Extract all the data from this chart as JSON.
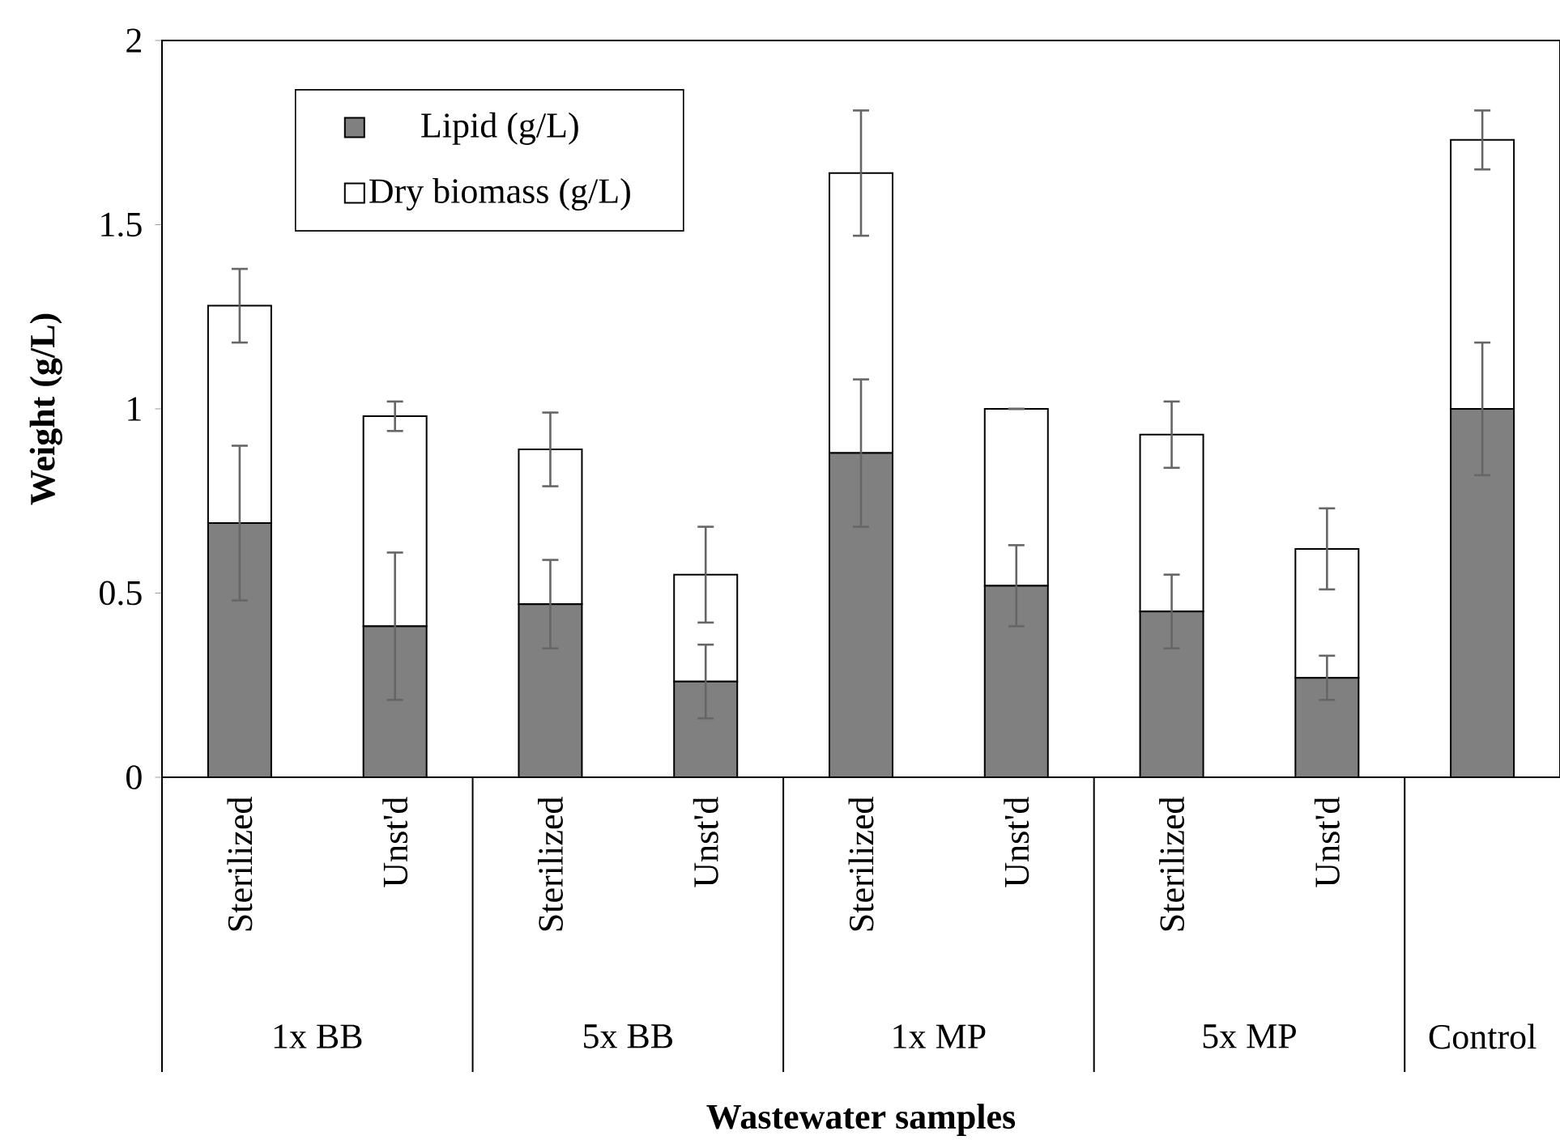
{
  "chart_data": {
    "type": "bar",
    "stacked": true,
    "xlabel": "Wastewater samples",
    "ylabel": "Weight (g/L)",
    "categories": [
      "Sterilized",
      "Unst'd",
      "Sterilized",
      "Unst'd",
      "Sterilized",
      "Unst'd",
      "Sterilized",
      "Unst'd",
      null
    ],
    "series": [
      {
        "name": "Lipid (g/L)",
        "color": "#808080",
        "values": [
          0.69,
          0.41,
          0.47,
          0.26,
          0.88,
          0.52,
          0.45,
          0.27,
          1.0
        ],
        "errors": [
          0.21,
          0.2,
          0.12,
          0.1,
          0.2,
          0.11,
          0.1,
          0.06,
          0.18
        ]
      },
      {
        "name": "Dry biomass (g/L)",
        "color": "#ffffff",
        "values": [
          0.59,
          0.57,
          0.42,
          0.29,
          0.76,
          0.48,
          0.48,
          0.35,
          0.73
        ],
        "errors": [
          0.1,
          0.04,
          0.1,
          0.13,
          0.17,
          0,
          0.09,
          0.11,
          0.08
        ]
      }
    ],
    "annotations": [
      "1x BB",
      "5x BB",
      "1x MP",
      "5x MP",
      "Control"
    ],
    "ylim": [
      0,
      2
    ],
    "yticks": [
      0,
      0.5,
      1,
      1.5,
      2
    ],
    "grid": false,
    "legend": "top left"
  }
}
